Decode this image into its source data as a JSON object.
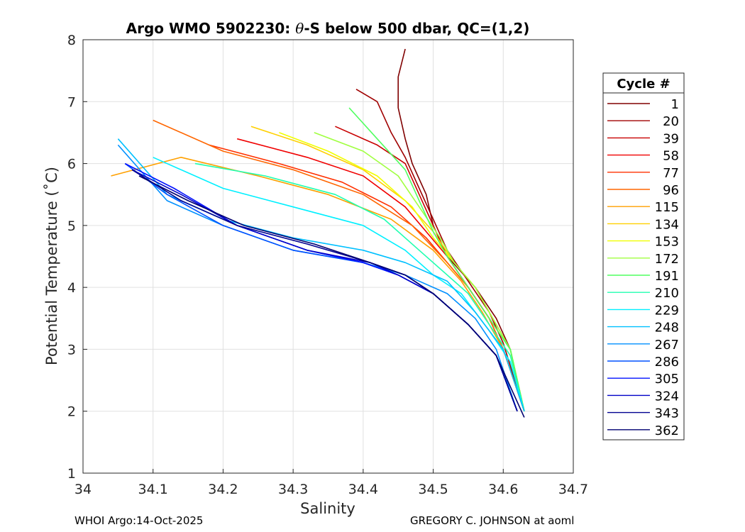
{
  "chart_data": {
    "type": "line",
    "title": "Argo WMO 5902230: θ-S below 500 dbar,  QC=(1,2)",
    "title_parts": [
      "Argo WMO 5902230: ",
      "θ",
      "-S below 500 dbar,  QC=(1,2)"
    ],
    "xlabel": "Salinity",
    "ylabel": "Potential Temperature (˚C)",
    "xlim": [
      34,
      34.7
    ],
    "ylim": [
      1,
      8
    ],
    "xticks": [
      "34",
      "34.1",
      "34.2",
      "34.3",
      "34.4",
      "34.5",
      "34.6",
      "34.7"
    ],
    "yticks": [
      "1",
      "2",
      "3",
      "4",
      "5",
      "6",
      "7",
      "8"
    ],
    "grid": true,
    "legend": {
      "title": "Cycle #",
      "placement": "right-outside",
      "entries": [
        {
          "label": "1",
          "color": "#800000"
        },
        {
          "label": "20",
          "color": "#a00000"
        },
        {
          "label": "39",
          "color": "#c80000"
        },
        {
          "label": "58",
          "color": "#f00000"
        },
        {
          "label": "77",
          "color": "#ff3000"
        },
        {
          "label": "96",
          "color": "#ff6600"
        },
        {
          "label": "115",
          "color": "#ffa000"
        },
        {
          "label": "134",
          "color": "#ffd000"
        },
        {
          "label": "153",
          "color": "#f0ff00"
        },
        {
          "label": "172",
          "color": "#a0ff40"
        },
        {
          "label": "191",
          "color": "#50ff60"
        },
        {
          "label": "210",
          "color": "#20ffb0"
        },
        {
          "label": "229",
          "color": "#00f0ff"
        },
        {
          "label": "248",
          "color": "#00c0ff"
        },
        {
          "label": "267",
          "color": "#0090ff"
        },
        {
          "label": "286",
          "color": "#0050ff"
        },
        {
          "label": "305",
          "color": "#0010ff"
        },
        {
          "label": "324",
          "color": "#0000c8"
        },
        {
          "label": "343",
          "color": "#000090"
        },
        {
          "label": "362",
          "color": "#000070"
        }
      ]
    },
    "series": [
      {
        "name": "1",
        "color": "#800000",
        "points": [
          [
            34.46,
            7.85
          ],
          [
            34.45,
            7.4
          ],
          [
            34.45,
            6.9
          ],
          [
            34.46,
            6.4
          ],
          [
            34.47,
            6.0
          ],
          [
            34.49,
            5.5
          ],
          [
            34.5,
            5.0
          ],
          [
            34.52,
            4.5
          ],
          [
            34.56,
            4.0
          ],
          [
            34.59,
            3.5
          ],
          [
            34.61,
            3.0
          ],
          [
            34.63,
            2.0
          ]
        ]
      },
      {
        "name": "20",
        "color": "#a00000",
        "points": [
          [
            34.39,
            7.2
          ],
          [
            34.42,
            7.0
          ],
          [
            34.44,
            6.5
          ],
          [
            34.46,
            6.1
          ],
          [
            34.48,
            5.6
          ],
          [
            34.5,
            5.1
          ],
          [
            34.52,
            4.6
          ],
          [
            34.55,
            4.1
          ],
          [
            34.58,
            3.6
          ],
          [
            34.6,
            3.1
          ],
          [
            34.63,
            2.0
          ]
        ]
      },
      {
        "name": "39",
        "color": "#c80000",
        "points": [
          [
            34.36,
            6.6
          ],
          [
            34.42,
            6.3
          ],
          [
            34.46,
            6.0
          ],
          [
            34.48,
            5.5
          ],
          [
            34.5,
            5.0
          ],
          [
            34.52,
            4.5
          ],
          [
            34.55,
            4.0
          ],
          [
            34.58,
            3.5
          ],
          [
            34.6,
            3.0
          ],
          [
            34.63,
            2.0
          ]
        ]
      },
      {
        "name": "58",
        "color": "#f00000",
        "points": [
          [
            34.22,
            6.4
          ],
          [
            34.32,
            6.1
          ],
          [
            34.4,
            5.8
          ],
          [
            34.46,
            5.3
          ],
          [
            34.49,
            4.9
          ],
          [
            34.52,
            4.5
          ],
          [
            34.55,
            4.0
          ],
          [
            34.58,
            3.5
          ],
          [
            34.61,
            3.0
          ],
          [
            34.63,
            2.0
          ]
        ]
      },
      {
        "name": "77",
        "color": "#ff3000",
        "points": [
          [
            34.18,
            6.3
          ],
          [
            34.28,
            6.0
          ],
          [
            34.37,
            5.7
          ],
          [
            34.44,
            5.3
          ],
          [
            34.49,
            4.8
          ],
          [
            34.52,
            4.4
          ],
          [
            34.55,
            4.0
          ],
          [
            34.58,
            3.5
          ],
          [
            34.6,
            3.0
          ],
          [
            34.63,
            2.0
          ]
        ]
      },
      {
        "name": "96",
        "color": "#ff6600",
        "points": [
          [
            34.1,
            6.7
          ],
          [
            34.2,
            6.2
          ],
          [
            34.3,
            5.9
          ],
          [
            34.4,
            5.5
          ],
          [
            34.47,
            5.0
          ],
          [
            34.52,
            4.4
          ],
          [
            34.55,
            4.0
          ],
          [
            34.58,
            3.5
          ],
          [
            34.6,
            3.0
          ],
          [
            34.63,
            2.0
          ]
        ]
      },
      {
        "name": "115",
        "color": "#ffa000",
        "points": [
          [
            34.04,
            5.8
          ],
          [
            34.14,
            6.1
          ],
          [
            34.25,
            5.8
          ],
          [
            34.35,
            5.5
          ],
          [
            34.44,
            5.1
          ],
          [
            34.5,
            4.6
          ],
          [
            34.54,
            4.1
          ],
          [
            34.57,
            3.6
          ],
          [
            34.6,
            3.0
          ],
          [
            34.63,
            2.0
          ]
        ]
      },
      {
        "name": "134",
        "color": "#ffd000",
        "points": [
          [
            34.24,
            6.6
          ],
          [
            34.32,
            6.3
          ],
          [
            34.4,
            5.9
          ],
          [
            34.46,
            5.4
          ],
          [
            34.5,
            4.9
          ],
          [
            34.53,
            4.4
          ],
          [
            34.56,
            4.0
          ],
          [
            34.59,
            3.4
          ],
          [
            34.61,
            3.0
          ],
          [
            34.63,
            2.0
          ]
        ]
      },
      {
        "name": "153",
        "color": "#f0ff00",
        "points": [
          [
            34.28,
            6.5
          ],
          [
            34.35,
            6.2
          ],
          [
            34.42,
            5.8
          ],
          [
            34.47,
            5.3
          ],
          [
            34.5,
            4.8
          ],
          [
            34.53,
            4.4
          ],
          [
            34.56,
            4.0
          ],
          [
            34.59,
            3.4
          ],
          [
            34.61,
            3.0
          ],
          [
            34.63,
            2.0
          ]
        ]
      },
      {
        "name": "172",
        "color": "#a0ff40",
        "points": [
          [
            34.33,
            6.5
          ],
          [
            34.4,
            6.2
          ],
          [
            34.45,
            5.8
          ],
          [
            34.48,
            5.3
          ],
          [
            34.51,
            4.8
          ],
          [
            34.53,
            4.4
          ],
          [
            34.56,
            4.0
          ],
          [
            34.59,
            3.4
          ],
          [
            34.61,
            3.0
          ],
          [
            34.63,
            2.0
          ]
        ]
      },
      {
        "name": "191",
        "color": "#50ff60",
        "points": [
          [
            34.38,
            6.9
          ],
          [
            34.42,
            6.4
          ],
          [
            34.46,
            5.9
          ],
          [
            34.48,
            5.4
          ],
          [
            34.5,
            4.9
          ],
          [
            34.52,
            4.5
          ],
          [
            34.55,
            4.0
          ],
          [
            34.58,
            3.5
          ],
          [
            34.61,
            3.0
          ],
          [
            34.63,
            2.0
          ]
        ]
      },
      {
        "name": "210",
        "color": "#20ffb0",
        "points": [
          [
            34.16,
            6.0
          ],
          [
            34.26,
            5.8
          ],
          [
            34.36,
            5.5
          ],
          [
            34.43,
            5.1
          ],
          [
            34.48,
            4.6
          ],
          [
            34.52,
            4.2
          ],
          [
            34.55,
            3.9
          ],
          [
            34.58,
            3.4
          ],
          [
            34.61,
            2.9
          ],
          [
            34.63,
            2.0
          ]
        ]
      },
      {
        "name": "229",
        "color": "#00f0ff",
        "points": [
          [
            34.1,
            6.1
          ],
          [
            34.2,
            5.6
          ],
          [
            34.3,
            5.3
          ],
          [
            34.4,
            5.0
          ],
          [
            34.46,
            4.6
          ],
          [
            34.5,
            4.2
          ],
          [
            34.54,
            3.9
          ],
          [
            34.58,
            3.3
          ],
          [
            34.61,
            2.8
          ],
          [
            34.63,
            2.0
          ]
        ]
      },
      {
        "name": "248",
        "color": "#00c0ff",
        "points": [
          [
            34.05,
            6.4
          ],
          [
            34.12,
            5.5
          ],
          [
            34.2,
            5.1
          ],
          [
            34.3,
            4.8
          ],
          [
            34.4,
            4.6
          ],
          [
            34.46,
            4.4
          ],
          [
            34.52,
            4.1
          ],
          [
            34.56,
            3.6
          ],
          [
            34.6,
            3.0
          ],
          [
            34.63,
            2.0
          ]
        ]
      },
      {
        "name": "267",
        "color": "#0090ff",
        "points": [
          [
            34.05,
            6.3
          ],
          [
            34.12,
            5.4
          ],
          [
            34.2,
            5.0
          ],
          [
            34.3,
            4.6
          ],
          [
            34.4,
            4.4
          ],
          [
            34.46,
            4.2
          ],
          [
            34.52,
            3.9
          ],
          [
            34.56,
            3.5
          ],
          [
            34.59,
            3.0
          ],
          [
            34.62,
            2.0
          ]
        ]
      },
      {
        "name": "286",
        "color": "#0050ff",
        "points": [
          [
            34.06,
            6.0
          ],
          [
            34.12,
            5.5
          ],
          [
            34.2,
            5.0
          ],
          [
            34.3,
            4.6
          ],
          [
            34.4,
            4.4
          ],
          [
            34.45,
            4.2
          ],
          [
            34.5,
            3.9
          ],
          [
            34.55,
            3.4
          ],
          [
            34.59,
            2.9
          ],
          [
            34.62,
            2.0
          ]
        ]
      },
      {
        "name": "305",
        "color": "#0010ff",
        "points": [
          [
            34.06,
            6.0
          ],
          [
            34.13,
            5.6
          ],
          [
            34.22,
            5.0
          ],
          [
            34.32,
            4.6
          ],
          [
            34.4,
            4.4
          ],
          [
            34.45,
            4.2
          ],
          [
            34.5,
            3.9
          ],
          [
            34.55,
            3.4
          ],
          [
            34.59,
            2.9
          ],
          [
            34.62,
            2.0
          ]
        ]
      },
      {
        "name": "324",
        "color": "#0000c8",
        "points": [
          [
            34.07,
            5.9
          ],
          [
            34.14,
            5.5
          ],
          [
            34.22,
            5.0
          ],
          [
            34.32,
            4.6
          ],
          [
            34.41,
            4.4
          ],
          [
            34.45,
            4.2
          ],
          [
            34.5,
            3.9
          ],
          [
            34.55,
            3.4
          ],
          [
            34.59,
            2.9
          ],
          [
            34.62,
            2.0
          ]
        ]
      },
      {
        "name": "343",
        "color": "#000090",
        "points": [
          [
            34.07,
            5.9
          ],
          [
            34.14,
            5.4
          ],
          [
            34.22,
            5.0
          ],
          [
            34.32,
            4.7
          ],
          [
            34.41,
            4.4
          ],
          [
            34.46,
            4.2
          ],
          [
            34.5,
            3.9
          ],
          [
            34.55,
            3.4
          ],
          [
            34.59,
            2.9
          ],
          [
            34.62,
            2.0
          ]
        ]
      },
      {
        "name": "362",
        "color": "#000070",
        "points": [
          [
            34.08,
            5.8
          ],
          [
            34.15,
            5.4
          ],
          [
            34.23,
            5.0
          ],
          [
            34.33,
            4.7
          ],
          [
            34.41,
            4.4
          ],
          [
            34.46,
            4.2
          ],
          [
            34.5,
            3.9
          ],
          [
            34.55,
            3.4
          ],
          [
            34.59,
            2.9
          ],
          [
            34.63,
            1.9
          ]
        ]
      }
    ]
  },
  "footer": {
    "left": "WHOI Argo:14-Oct-2025",
    "right": "GREGORY C. JOHNSON at aoml"
  }
}
